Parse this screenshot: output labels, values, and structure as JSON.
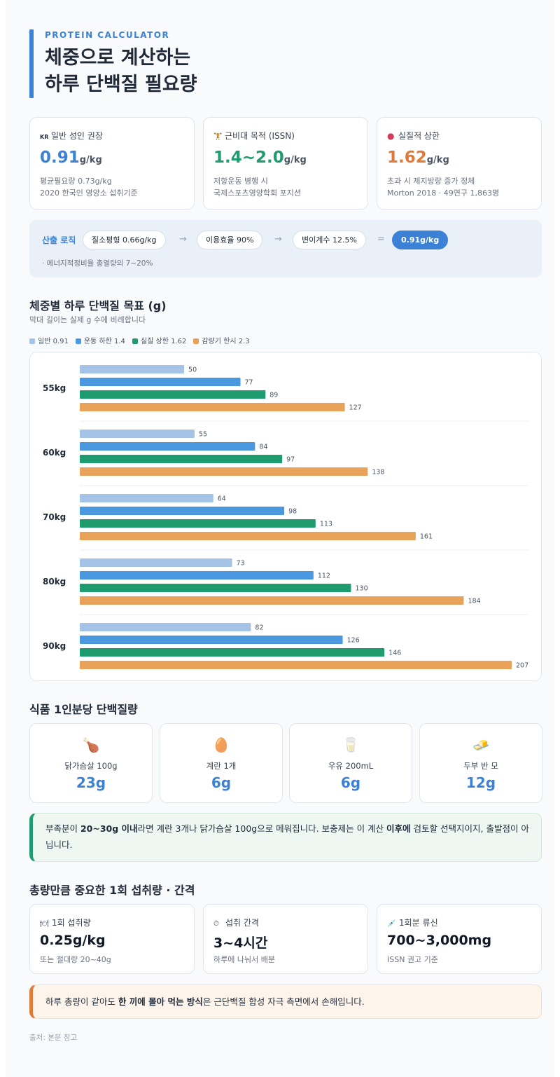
{
  "header": {
    "eyebrow": "PROTEIN CALCULATOR",
    "title_line1": "체중으로 계산하는",
    "title_line2": "하루 단백질 필요량"
  },
  "stats": [
    {
      "icon": "KR",
      "label": "일반 성인 권장",
      "value": "0.91",
      "unit": "g/kg",
      "note1": "평균필요량 0.73g/kg",
      "note2": "2020 한국인 영양소 섭취기준",
      "color": "#3b82d6"
    },
    {
      "icon": "🏋",
      "label": "근비대 목적 (ISSN)",
      "value": "1.4~2.0",
      "unit": "g/kg",
      "note1": "저항운동 병행 시",
      "note2": "국제스포츠영양학회 포지션",
      "color": "#1e9c6f"
    },
    {
      "icon": "●",
      "label": "실질적 상한",
      "value": "1.62",
      "unit": "g/kg",
      "note1": "초과 시 제지방량 증가 정체",
      "note2": "Morton 2018 · 49연구 1,863명",
      "color": "#e07a3a"
    }
  ],
  "logic": {
    "head": "산출 로직",
    "step1": "질소평형 0.66g/kg",
    "arrow": "→",
    "step2": "이용효율 90%",
    "step3": "변이계수 12.5%",
    "equals": "=",
    "result": "0.91g/kg",
    "note": "· 에너지적정비율 총열량의 7~20%"
  },
  "chart_section": {
    "title": "체중별 하루 단백질 목표 (g)",
    "subtitle": "막대 길이는 실제 g 수에 비례합니다"
  },
  "chart_data": {
    "type": "bar",
    "orientation": "horizontal",
    "title": "체중별 하루 단백질 목표 (g)",
    "categories": [
      "55kg",
      "60kg",
      "70kg",
      "80kg",
      "90kg"
    ],
    "series": [
      {
        "name": "일반 0.91",
        "color": "#a5c3e6",
        "values": [
          50,
          55,
          64,
          73,
          82
        ]
      },
      {
        "name": "운동 하한 1.4",
        "color": "#4a98e0",
        "values": [
          77,
          84,
          98,
          112,
          126
        ]
      },
      {
        "name": "실질 상한 1.62",
        "color": "#1e9c6f",
        "values": [
          89,
          97,
          113,
          130,
          146
        ]
      },
      {
        "name": "감량기 한시 2.3",
        "color": "#e8a25a",
        "values": [
          127,
          138,
          161,
          184,
          207
        ]
      }
    ],
    "xlim": [
      0,
      207
    ],
    "legend_position": "top-left",
    "grid": false
  },
  "foods": {
    "title": "식품 1인분당 단백질량",
    "items": [
      {
        "icon": "🍗",
        "name": "닭가슴살 100g",
        "protein": "23g"
      },
      {
        "icon": "🥚",
        "name": "계란 1개",
        "protein": "6g"
      },
      {
        "icon": "🥛",
        "name": "우유 200mL",
        "protein": "6g"
      },
      {
        "icon": "🧈",
        "name": "두부 반 모",
        "protein": "12g"
      }
    ]
  },
  "callout_green": {
    "t1": "부족분이 ",
    "b1": "20~30g 이내",
    "t2": "라면 계란 3개나 닭가슴살 100g으로 메워집니다. 보충제는 이 계산 ",
    "b2": "이후에",
    "t3": " 검토할 선택지이지, 출발점이 아닙니다."
  },
  "timing": {
    "title": "총량만큼 중요한 1회 섭취량 · 간격",
    "items": [
      {
        "icon": "🍽",
        "label": "1회 섭취량",
        "value": "0.25g/kg",
        "sub": "또는 절대량 20~40g"
      },
      {
        "icon": "⏱",
        "label": "섭취 간격",
        "value": "3~4시간",
        "sub": "하루에 나눠서 배분"
      },
      {
        "icon": "💉",
        "label": "1회분 류신",
        "value": "700~3,000mg",
        "sub": "ISSN 권고 기준"
      }
    ]
  },
  "callout_orange": {
    "t1": "하루 총량이 같아도 ",
    "b1": "한 끼에 몰아 먹는 방식",
    "t2": "은 근단백질 합성 자극 측면에서 손해입니다."
  },
  "source": "출처: 본문 참고"
}
